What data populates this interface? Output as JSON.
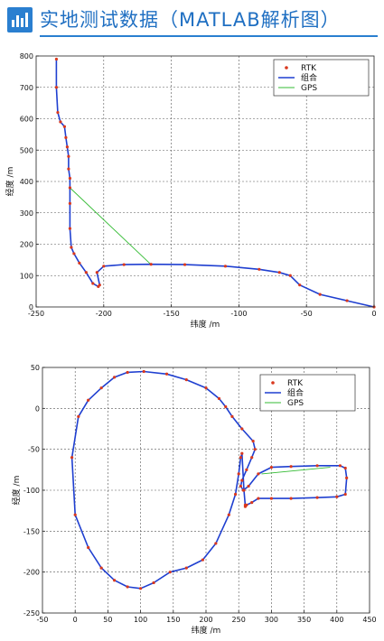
{
  "header": {
    "title": "实地测试数据（MATLAB解析图）",
    "icon": "bar-chart-icon",
    "accent": "#2a7fd0"
  },
  "colors": {
    "rtk": "#d9381e",
    "combined": "#1f3fd0",
    "gps": "#33bb33"
  },
  "chart_data": [
    {
      "type": "scatter",
      "xlabel": "纬度 /m",
      "ylabel": "经度 /m",
      "xlim": [
        -250,
        0
      ],
      "ylim": [
        0,
        800
      ],
      "xticks": [
        -250,
        -200,
        -150,
        -100,
        -50,
        0
      ],
      "yticks": [
        0,
        100,
        200,
        300,
        400,
        500,
        600,
        700,
        800
      ],
      "grid": true,
      "legend_position": "top-right",
      "series": [
        {
          "name": "RTK",
          "style": "points",
          "x": [
            -235,
            -235,
            -234,
            -232,
            -229,
            -228,
            -227,
            -226,
            -226,
            -225,
            -225,
            -225,
            -225,
            -224,
            -222,
            -218,
            -213,
            -208,
            -204,
            -203,
            -205,
            -200,
            -185,
            -165,
            -140,
            -110,
            -85,
            -70,
            -62,
            -55,
            -40,
            -20,
            0
          ],
          "y": [
            790,
            700,
            620,
            590,
            575,
            540,
            510,
            480,
            440,
            410,
            380,
            330,
            250,
            190,
            170,
            140,
            110,
            75,
            65,
            70,
            110,
            130,
            135,
            136,
            135,
            130,
            120,
            110,
            100,
            70,
            40,
            20,
            0
          ]
        },
        {
          "name": "组合",
          "style": "line",
          "x": [
            -235,
            -235,
            -234,
            -232,
            -229,
            -228,
            -227,
            -226,
            -226,
            -225,
            -225,
            -225,
            -225,
            -224,
            -222,
            -218,
            -213,
            -208,
            -204,
            -203,
            -205,
            -200,
            -185,
            -165,
            -140,
            -110,
            -85,
            -70,
            -62,
            -55,
            -40,
            -20,
            0
          ],
          "y": [
            790,
            700,
            620,
            590,
            575,
            540,
            510,
            480,
            440,
            410,
            380,
            330,
            250,
            190,
            170,
            140,
            110,
            75,
            65,
            70,
            110,
            130,
            135,
            136,
            135,
            130,
            120,
            110,
            100,
            70,
            40,
            20,
            0
          ]
        },
        {
          "name": "GPS",
          "style": "line",
          "x": [
            -225,
            -165
          ],
          "y": [
            380,
            135
          ]
        }
      ]
    },
    {
      "type": "scatter",
      "xlabel": "纬度 /m",
      "ylabel": "经度 /m",
      "xlim": [
        -50,
        450
      ],
      "ylim": [
        -250,
        50
      ],
      "xticks": [
        -50,
        0,
        50,
        100,
        150,
        200,
        250,
        300,
        350,
        400,
        450
      ],
      "yticks": [
        -250,
        -200,
        -150,
        -100,
        -50,
        0,
        50
      ],
      "grid": true,
      "legend_position": "top-right",
      "series": [
        {
          "name": "RTK",
          "style": "points",
          "x": [
            260,
            262,
            270,
            280,
            300,
            330,
            370,
            400,
            413,
            415,
            413,
            405,
            370,
            330,
            300,
            280,
            265,
            257,
            253,
            255,
            262,
            270,
            275,
            272,
            255,
            240,
            230,
            220,
            200,
            170,
            140,
            105,
            80,
            60,
            40,
            20,
            5,
            -5,
            0,
            20,
            40,
            60,
            80,
            100,
            120,
            145,
            170,
            195,
            215,
            235,
            245,
            250,
            253,
            255,
            258,
            260
          ],
          "y": [
            -120,
            -118,
            -115,
            -110,
            -110,
            -110,
            -109,
            -108,
            -105,
            -85,
            -73,
            -70,
            -70,
            -71,
            -72,
            -80,
            -95,
            -100,
            -95,
            -88,
            -75,
            -60,
            -50,
            -40,
            -25,
            -10,
            2,
            12,
            25,
            35,
            42,
            45,
            44,
            38,
            25,
            10,
            -10,
            -60,
            -130,
            -170,
            -195,
            -210,
            -218,
            -220,
            -213,
            -200,
            -195,
            -185,
            -165,
            -130,
            -105,
            -80,
            -60,
            -55,
            -100,
            -118
          ]
        },
        {
          "name": "组合",
          "style": "line",
          "x": [
            260,
            262,
            270,
            280,
            300,
            330,
            370,
            400,
            413,
            415,
            413,
            405,
            370,
            330,
            300,
            280,
            265,
            257,
            253,
            255,
            262,
            270,
            275,
            272,
            255,
            240,
            230,
            220,
            200,
            170,
            140,
            105,
            80,
            60,
            40,
            20,
            5,
            -5,
            0,
            20,
            40,
            60,
            80,
            100,
            120,
            145,
            170,
            195,
            215,
            235,
            245,
            250,
            253,
            255,
            258,
            260
          ],
          "y": [
            -120,
            -118,
            -115,
            -110,
            -110,
            -110,
            -109,
            -108,
            -105,
            -85,
            -73,
            -70,
            -70,
            -71,
            -72,
            -80,
            -95,
            -100,
            -95,
            -88,
            -75,
            -60,
            -50,
            -40,
            -25,
            -10,
            2,
            12,
            25,
            35,
            42,
            45,
            44,
            38,
            25,
            10,
            -10,
            -60,
            -130,
            -170,
            -195,
            -210,
            -218,
            -220,
            -213,
            -200,
            -195,
            -185,
            -165,
            -130,
            -105,
            -80,
            -60,
            -55,
            -100,
            -118
          ]
        },
        {
          "name": "GPS",
          "style": "line",
          "x": [
            285,
            390
          ],
          "y": [
            -80,
            -72
          ]
        }
      ]
    }
  ]
}
